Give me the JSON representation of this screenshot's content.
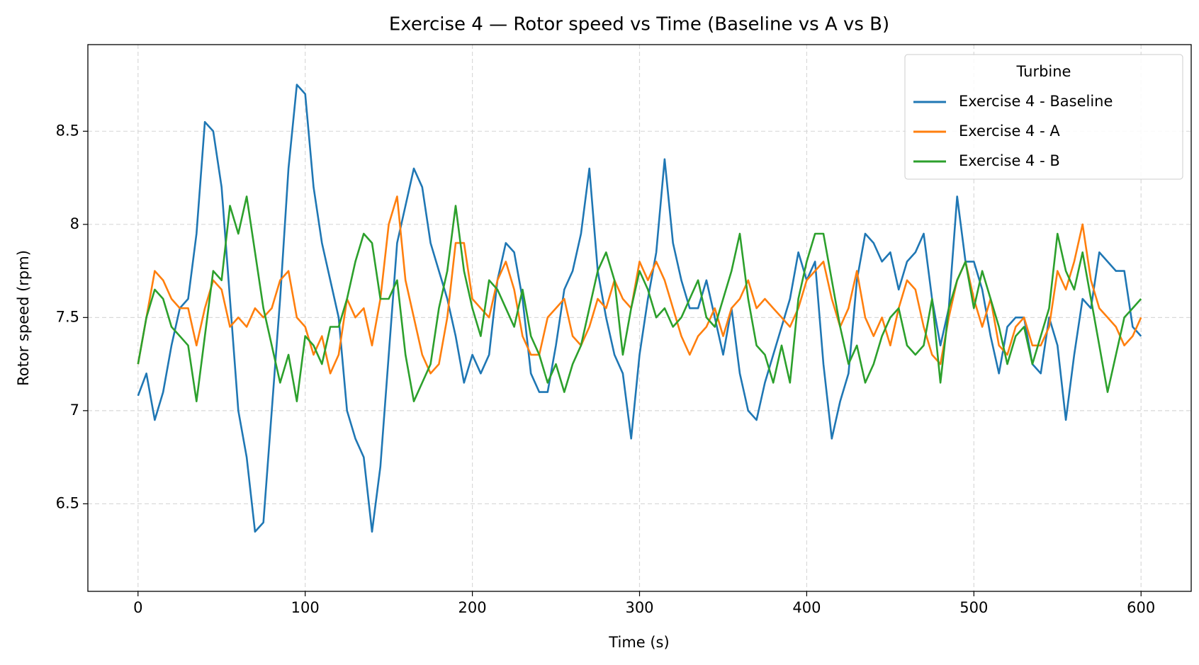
{
  "chart_data": {
    "type": "line",
    "title": "Exercise 4 — Rotor speed vs Time (Baseline vs A vs B)",
    "x_label": "Time (s)",
    "y_label": "Rotor speed (rpm)",
    "legend_title": "Turbine",
    "legend": "upper right",
    "grid": true,
    "xlim": [
      -30,
      630
    ],
    "ylim": [
      6.03,
      8.965
    ],
    "xticks": [
      0,
      100,
      200,
      300,
      400,
      500,
      600
    ],
    "yticks": [
      6.5,
      7.0,
      7.5,
      8.0,
      8.5
    ],
    "x": [
      0,
      5,
      10,
      15,
      20,
      25,
      30,
      35,
      40,
      45,
      50,
      55,
      60,
      65,
      70,
      75,
      80,
      85,
      90,
      95,
      100,
      105,
      110,
      115,
      120,
      125,
      130,
      135,
      140,
      145,
      150,
      155,
      160,
      165,
      170,
      175,
      180,
      185,
      190,
      195,
      200,
      205,
      210,
      215,
      220,
      225,
      230,
      235,
      240,
      245,
      250,
      255,
      260,
      265,
      270,
      275,
      280,
      285,
      290,
      295,
      300,
      305,
      310,
      315,
      320,
      325,
      330,
      335,
      340,
      345,
      350,
      355,
      360,
      365,
      370,
      375,
      380,
      385,
      390,
      395,
      400,
      405,
      410,
      415,
      420,
      425,
      430,
      435,
      440,
      445,
      450,
      455,
      460,
      465,
      470,
      475,
      480,
      485,
      490,
      495,
      500,
      505,
      510,
      515,
      520,
      525,
      530,
      535,
      540,
      545,
      550,
      555,
      560,
      565,
      570,
      575,
      580,
      585,
      590,
      595,
      600
    ],
    "series": [
      {
        "name": "Exercise 4 - Baseline",
        "color": "#1f77b4",
        "values": [
          7.08,
          7.2,
          6.95,
          7.1,
          7.35,
          7.55,
          7.6,
          7.95,
          8.55,
          8.5,
          8.2,
          7.6,
          7.0,
          6.75,
          6.35,
          6.4,
          7.0,
          7.6,
          8.3,
          8.75,
          8.7,
          8.2,
          7.9,
          7.7,
          7.5,
          7.0,
          6.85,
          6.75,
          6.35,
          6.7,
          7.3,
          7.9,
          8.1,
          8.3,
          8.2,
          7.9,
          7.75,
          7.6,
          7.4,
          7.15,
          7.3,
          7.2,
          7.3,
          7.7,
          7.9,
          7.85,
          7.6,
          7.2,
          7.1,
          7.1,
          7.35,
          7.65,
          7.75,
          7.95,
          8.3,
          7.75,
          7.5,
          7.3,
          7.2,
          6.85,
          7.3,
          7.6,
          7.85,
          8.35,
          7.9,
          7.7,
          7.55,
          7.55,
          7.7,
          7.5,
          7.3,
          7.55,
          7.2,
          7.0,
          6.95,
          7.15,
          7.3,
          7.45,
          7.6,
          7.85,
          7.7,
          7.8,
          7.25,
          6.85,
          7.05,
          7.2,
          7.7,
          7.95,
          7.9,
          7.8,
          7.85,
          7.65,
          7.8,
          7.85,
          7.95,
          7.6,
          7.35,
          7.55,
          8.15,
          7.8,
          7.8,
          7.65,
          7.4,
          7.2,
          7.45,
          7.5,
          7.5,
          7.25,
          7.2,
          7.5,
          7.35,
          6.95,
          7.3,
          7.6,
          7.55,
          7.85,
          7.8,
          7.75,
          7.75,
          7.45,
          7.4
        ]
      },
      {
        "name": "Exercise 4 - A",
        "color": "#ff7f0e",
        "values": [
          7.25,
          7.5,
          7.75,
          7.7,
          7.6,
          7.55,
          7.55,
          7.35,
          7.55,
          7.7,
          7.65,
          7.45,
          7.5,
          7.45,
          7.55,
          7.5,
          7.55,
          7.7,
          7.75,
          7.5,
          7.45,
          7.3,
          7.4,
          7.2,
          7.3,
          7.6,
          7.5,
          7.55,
          7.35,
          7.6,
          8.0,
          8.15,
          7.7,
          7.5,
          7.3,
          7.2,
          7.25,
          7.5,
          7.9,
          7.9,
          7.6,
          7.55,
          7.5,
          7.7,
          7.8,
          7.65,
          7.4,
          7.3,
          7.3,
          7.5,
          7.55,
          7.6,
          7.4,
          7.35,
          7.45,
          7.6,
          7.55,
          7.7,
          7.6,
          7.55,
          7.8,
          7.7,
          7.8,
          7.7,
          7.55,
          7.4,
          7.3,
          7.4,
          7.45,
          7.55,
          7.4,
          7.55,
          7.6,
          7.7,
          7.55,
          7.6,
          7.55,
          7.5,
          7.45,
          7.55,
          7.7,
          7.75,
          7.8,
          7.6,
          7.45,
          7.55,
          7.75,
          7.5,
          7.4,
          7.5,
          7.35,
          7.55,
          7.7,
          7.65,
          7.45,
          7.3,
          7.25,
          7.5,
          7.7,
          7.8,
          7.6,
          7.45,
          7.6,
          7.35,
          7.3,
          7.45,
          7.5,
          7.35,
          7.35,
          7.45,
          7.75,
          7.65,
          7.8,
          8.0,
          7.7,
          7.55,
          7.5,
          7.45,
          7.35,
          7.4,
          7.5
        ]
      },
      {
        "name": "Exercise 4 - B",
        "color": "#2ca02c",
        "values": [
          7.25,
          7.5,
          7.65,
          7.6,
          7.45,
          7.4,
          7.35,
          7.05,
          7.4,
          7.75,
          7.7,
          8.1,
          7.95,
          8.15,
          7.85,
          7.55,
          7.35,
          7.15,
          7.3,
          7.05,
          7.4,
          7.35,
          7.25,
          7.45,
          7.45,
          7.6,
          7.8,
          7.95,
          7.9,
          7.6,
          7.6,
          7.7,
          7.3,
          7.05,
          7.15,
          7.25,
          7.55,
          7.75,
          8.1,
          7.75,
          7.55,
          7.4,
          7.7,
          7.65,
          7.55,
          7.45,
          7.65,
          7.4,
          7.3,
          7.15,
          7.25,
          7.1,
          7.25,
          7.35,
          7.55,
          7.75,
          7.85,
          7.7,
          7.3,
          7.55,
          7.75,
          7.65,
          7.5,
          7.55,
          7.45,
          7.5,
          7.6,
          7.7,
          7.5,
          7.45,
          7.6,
          7.75,
          7.95,
          7.6,
          7.35,
          7.3,
          7.15,
          7.35,
          7.15,
          7.6,
          7.8,
          7.95,
          7.95,
          7.7,
          7.45,
          7.25,
          7.35,
          7.15,
          7.25,
          7.4,
          7.5,
          7.55,
          7.35,
          7.3,
          7.35,
          7.6,
          7.15,
          7.55,
          7.7,
          7.8,
          7.55,
          7.75,
          7.6,
          7.45,
          7.25,
          7.4,
          7.45,
          7.25,
          7.4,
          7.55,
          7.95,
          7.75,
          7.65,
          7.85,
          7.6,
          7.35,
          7.1,
          7.3,
          7.5,
          7.55,
          7.6
        ]
      }
    ]
  }
}
